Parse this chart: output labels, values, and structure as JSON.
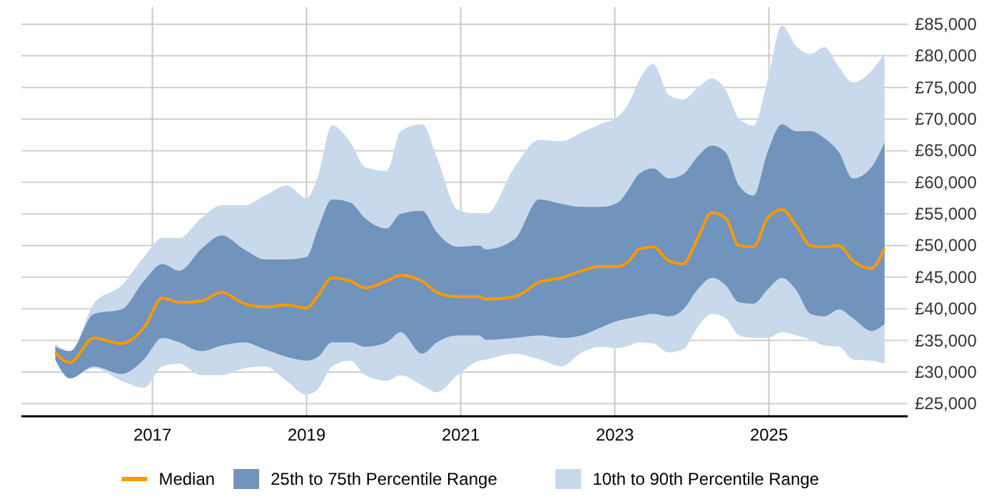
{
  "chart_data": {
    "type": "line",
    "x": [
      2015.74,
      2015.93,
      2016.24,
      2016.6,
      2016.89,
      2017.13,
      2017.35,
      2017.63,
      2017.9,
      2018.19,
      2018.46,
      2018.74,
      2019.0,
      2019.15,
      2019.33,
      2019.57,
      2019.76,
      2020.04,
      2020.22,
      2020.5,
      2020.69,
      2020.96,
      2021.24,
      2021.33,
      2021.7,
      2022.02,
      2022.31,
      2022.57,
      2022.81,
      2023.04,
      2023.19,
      2023.31,
      2023.5,
      2023.7,
      2023.89,
      2024.07,
      2024.26,
      2024.44,
      2024.61,
      2024.8,
      2024.98,
      2025.17,
      2025.35,
      2025.54,
      2025.72,
      2025.91,
      2026.09,
      2026.33,
      2026.5
    ],
    "series": [
      {
        "name": "10th to 90th Percentile Range",
        "type": "area",
        "color": "#c9d9ec",
        "lower": [
          31800,
          29000,
          30600,
          28600,
          27500,
          30900,
          31300,
          29500,
          29500,
          30600,
          30900,
          28600,
          26400,
          27300,
          30900,
          31800,
          29500,
          28600,
          29500,
          27900,
          26800,
          29500,
          31800,
          32000,
          32900,
          32000,
          30900,
          33100,
          34000,
          33800,
          34200,
          34700,
          34500,
          33100,
          33600,
          37000,
          39200,
          38500,
          35800,
          35400,
          35400,
          36300,
          35800,
          35100,
          34200,
          34000,
          32000,
          31800,
          31300
        ],
        "values": [
          null,
          null,
          null,
          null,
          null,
          null,
          null,
          null,
          null,
          null,
          null,
          null,
          null,
          null,
          null,
          null,
          null,
          null,
          null,
          null,
          null,
          null,
          null,
          null,
          null,
          null,
          null,
          null,
          null,
          null,
          null,
          null,
          null,
          null,
          null,
          null,
          null,
          null,
          null,
          null,
          null,
          null,
          null,
          null,
          null,
          null,
          null,
          null,
          null
        ],
        "upper": [
          34500,
          33300,
          40800,
          43700,
          48200,
          51200,
          51200,
          54300,
          56400,
          56400,
          57900,
          59500,
          57500,
          61100,
          69000,
          66300,
          62400,
          61800,
          68100,
          69200,
          64000,
          55700,
          55000,
          55000,
          62400,
          66700,
          66500,
          67900,
          69200,
          70400,
          72700,
          76000,
          78700,
          73800,
          73100,
          74900,
          76400,
          74600,
          70100,
          69000,
          76000,
          84800,
          81600,
          80300,
          81400,
          78200,
          75800,
          77600,
          80500
        ]
      },
      {
        "name": "25th to 75th Percentile Range",
        "type": "area",
        "color": "#7094bc",
        "lower": [
          32000,
          29000,
          30900,
          29700,
          32000,
          35400,
          34700,
          33300,
          34200,
          34700,
          33600,
          32400,
          31800,
          32400,
          34700,
          34700,
          34000,
          34700,
          36300,
          32900,
          34700,
          35800,
          35800,
          35100,
          35400,
          35800,
          35400,
          35800,
          37000,
          38100,
          38500,
          38800,
          39200,
          38800,
          39900,
          43000,
          44900,
          43700,
          41000,
          40800,
          43000,
          44900,
          43000,
          39200,
          38800,
          39900,
          38500,
          36500,
          37600
        ],
        "values": [
          null,
          null,
          null,
          null,
          null,
          null,
          null,
          null,
          null,
          null,
          null,
          null,
          null,
          null,
          null,
          null,
          null,
          null,
          null,
          null,
          null,
          null,
          null,
          null,
          null,
          null,
          null,
          null,
          null,
          null,
          null,
          null,
          null,
          null,
          null,
          null,
          null,
          null,
          null,
          null,
          null,
          null,
          null,
          null,
          null,
          null,
          null,
          null,
          null
        ],
        "upper": [
          34000,
          33300,
          39200,
          39900,
          44400,
          47100,
          46000,
          49400,
          51600,
          49400,
          47800,
          47800,
          48200,
          52700,
          57300,
          56800,
          54300,
          52700,
          55000,
          55500,
          52100,
          49800,
          50000,
          49400,
          51000,
          57300,
          56600,
          56100,
          56100,
          56800,
          59100,
          61300,
          62200,
          60600,
          61300,
          64000,
          65800,
          64700,
          59500,
          57900,
          64700,
          69200,
          68100,
          68100,
          67000,
          64700,
          60600,
          62400,
          66300
        ]
      },
      {
        "name": "Median",
        "color": "#ff9900",
        "values": [
          33100,
          31500,
          35400,
          34500,
          37000,
          41700,
          41000,
          41200,
          42600,
          40800,
          40300,
          40600,
          40100,
          42100,
          44900,
          44400,
          43300,
          44400,
          45300,
          44400,
          42600,
          41900,
          41900,
          41500,
          41900,
          44200,
          44900,
          46000,
          46700,
          46700,
          47600,
          49400,
          49800,
          47600,
          47100,
          51000,
          55200,
          54300,
          50000,
          49800,
          54300,
          55700,
          53200,
          50000,
          49800,
          50000,
          47600,
          46400,
          49600
        ]
      }
    ],
    "xlim": [
      2015.3,
      2026.8
    ],
    "xticks": [
      2017,
      2019,
      2021,
      2023,
      2025
    ],
    "ylim": [
      23000,
      87700
    ],
    "yticks": [
      {
        "value": 25000,
        "label": "£25,000"
      },
      {
        "value": 30000,
        "label": "£30,000"
      },
      {
        "value": 35000,
        "label": "£35,000"
      },
      {
        "value": 40000,
        "label": "£40,000"
      },
      {
        "value": 45000,
        "label": "£45,000"
      },
      {
        "value": 50000,
        "label": "£50,000"
      },
      {
        "value": 55000,
        "label": "£55,000"
      },
      {
        "value": 60000,
        "label": "£60,000"
      },
      {
        "value": 65000,
        "label": "£65,000"
      },
      {
        "value": 70000,
        "label": "£70,000"
      },
      {
        "value": 75000,
        "label": "£75,000"
      },
      {
        "value": 80000,
        "label": "£80,000"
      },
      {
        "value": 85000,
        "label": "£85,000"
      }
    ],
    "grid": true,
    "legend": "bottom",
    "marker": "none",
    "line_style": "solid"
  }
}
